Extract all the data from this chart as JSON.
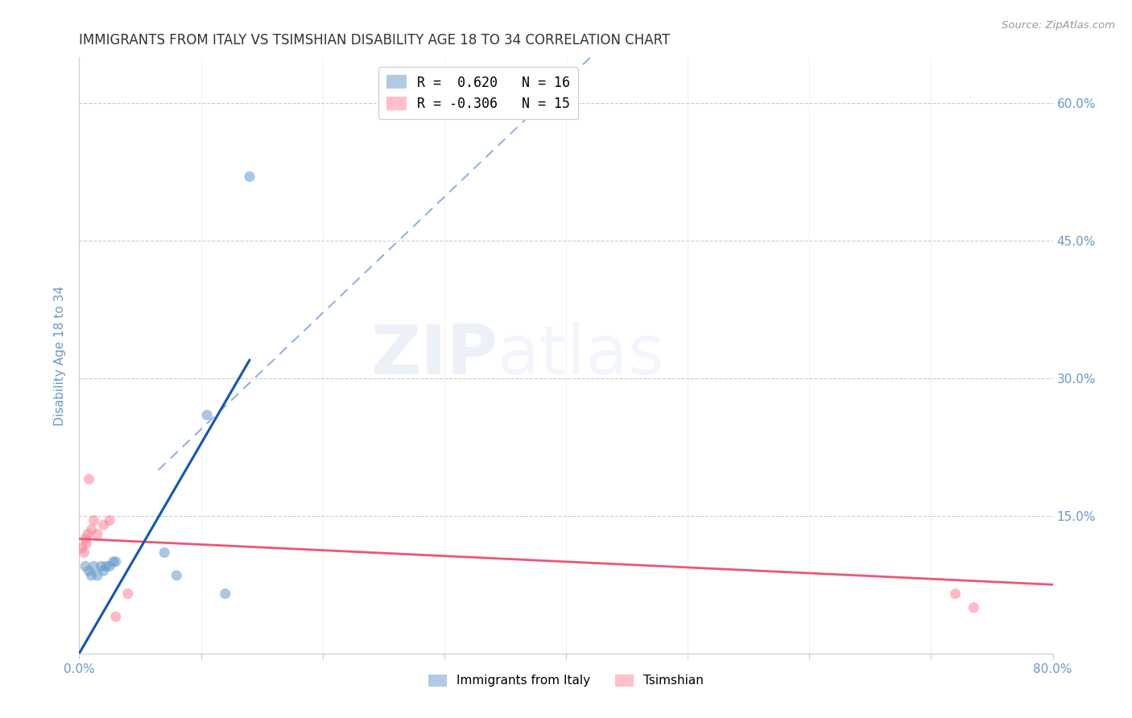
{
  "title": "IMMIGRANTS FROM ITALY VS TSIMSHIAN DISABILITY AGE 18 TO 34 CORRELATION CHART",
  "source": "Source: ZipAtlas.com",
  "ylabel": "Disability Age 18 to 34",
  "xlabel": "",
  "xlim": [
    0.0,
    0.8
  ],
  "ylim": [
    0.0,
    0.65
  ],
  "yticks": [
    0.0,
    0.15,
    0.3,
    0.45,
    0.6
  ],
  "ytick_labels": [
    "",
    "15.0%",
    "30.0%",
    "45.0%",
    "60.0%"
  ],
  "xticks": [
    0.0,
    0.1,
    0.2,
    0.3,
    0.4,
    0.5,
    0.6,
    0.7,
    0.8
  ],
  "xtick_labels": [
    "0.0%",
    "",
    "",
    "",
    "",
    "",
    "",
    "",
    "80.0%"
  ],
  "watermark_zip": "ZIP",
  "watermark_atlas": "atlas",
  "legend_italy_r": "R =  0.620",
  "legend_italy_n": "N = 16",
  "legend_tsimshian_r": "R = -0.306",
  "legend_tsimshian_n": "N = 15",
  "legend_label_italy": "Immigrants from Italy",
  "legend_label_tsimshian": "Tsimshian",
  "italy_color": "#6699CC",
  "tsimshian_color": "#FF8099",
  "italy_line_color": "#1155BB",
  "tsimshian_line_color": "#EE5577",
  "italy_scatter_x": [
    0.005,
    0.008,
    0.01,
    0.012,
    0.015,
    0.018,
    0.02,
    0.022,
    0.025,
    0.028,
    0.03,
    0.07,
    0.08,
    0.105,
    0.12,
    0.14
  ],
  "italy_scatter_y": [
    0.095,
    0.09,
    0.085,
    0.095,
    0.085,
    0.095,
    0.09,
    0.095,
    0.095,
    0.1,
    0.1,
    0.11,
    0.085,
    0.26,
    0.065,
    0.52
  ],
  "tsimshian_scatter_x": [
    0.002,
    0.004,
    0.005,
    0.006,
    0.007,
    0.008,
    0.01,
    0.012,
    0.015,
    0.02,
    0.025,
    0.03,
    0.04,
    0.72,
    0.735
  ],
  "tsimshian_scatter_y": [
    0.115,
    0.11,
    0.125,
    0.12,
    0.13,
    0.19,
    0.135,
    0.145,
    0.13,
    0.14,
    0.145,
    0.04,
    0.065,
    0.065,
    0.05
  ],
  "italy_solid_trend_x": [
    0.0,
    0.14
  ],
  "italy_solid_trend_y": [
    0.0,
    0.32
  ],
  "italy_dash_trend_x": [
    0.065,
    0.42
  ],
  "italy_dash_trend_y": [
    0.2,
    0.65
  ],
  "tsimshian_trend_x": [
    0.0,
    0.8
  ],
  "tsimshian_trend_y": [
    0.125,
    0.075
  ],
  "background_color": "#ffffff",
  "grid_color": "#cccccc",
  "axis_label_color": "#6699CC",
  "title_color": "#333333",
  "title_fontsize": 12,
  "axis_label_fontsize": 11,
  "tick_fontsize": 11,
  "marker_size": 90
}
